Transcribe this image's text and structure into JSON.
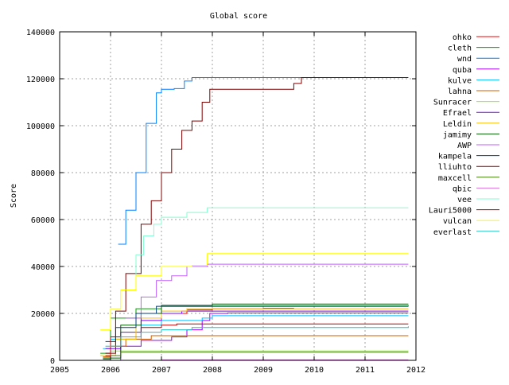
{
  "chart_data": {
    "type": "line",
    "title": "Global score",
    "xlabel": "",
    "ylabel": "Score",
    "xlim": [
      2005,
      2012
    ],
    "ylim": [
      0,
      140000
    ],
    "x_ticks": [
      "2005",
      "2006",
      "2007",
      "2008",
      "2009",
      "2010",
      "2011",
      "2012"
    ],
    "y_ticks": [
      "0",
      "20000",
      "40000",
      "60000",
      "80000",
      "100000",
      "120000",
      "140000"
    ],
    "grid": true,
    "legend_position": "right",
    "series": [
      {
        "name": "ohko",
        "color": "#ff0000",
        "points": [
          [
            2006.5,
            20000
          ],
          [
            2007.5,
            21500
          ],
          [
            2008.0,
            22000
          ],
          [
            2009.0,
            22200
          ],
          [
            2009.6,
            22300
          ]
        ]
      },
      {
        "name": "cleth",
        "color": "#00a000",
        "points": [
          [
            2005.8,
            3000
          ],
          [
            2006.0,
            18000
          ],
          [
            2006.5,
            22000
          ],
          [
            2007.0,
            23000
          ],
          [
            2008.0,
            23200
          ],
          [
            2011.85,
            23500
          ]
        ]
      },
      {
        "name": "wnd",
        "color": "#0080ff",
        "points": [
          [
            2006.15,
            49500
          ],
          [
            2006.3,
            64000
          ],
          [
            2006.5,
            80000
          ],
          [
            2006.7,
            101000
          ],
          [
            2006.9,
            114000
          ],
          [
            2007.0,
            115500
          ],
          [
            2007.25,
            115800
          ],
          [
            2007.45,
            119000
          ],
          [
            2007.6,
            120500
          ],
          [
            2008.0,
            120500
          ],
          [
            2009.75,
            120500
          ]
        ]
      },
      {
        "name": "quba",
        "color": "#a000ff",
        "points": [
          [
            2005.9,
            0
          ],
          [
            2006.2,
            6000
          ],
          [
            2006.6,
            8500
          ],
          [
            2007.2,
            10000
          ],
          [
            2007.5,
            13000
          ],
          [
            2007.8,
            17000
          ],
          [
            2007.95,
            20000
          ],
          [
            2008.3,
            20200
          ],
          [
            2011.85,
            20200
          ]
        ]
      },
      {
        "name": "kulve",
        "color": "#00c0ff",
        "points": [
          [
            2005.85,
            5000
          ],
          [
            2006.0,
            9000
          ],
          [
            2006.6,
            15000
          ],
          [
            2007.0,
            17000
          ],
          [
            2007.8,
            18000
          ],
          [
            2008.0,
            19000
          ],
          [
            2011.85,
            19000
          ]
        ]
      },
      {
        "name": "lahna",
        "color": "#d06000",
        "points": [
          [
            2005.85,
            1500
          ],
          [
            2006.0,
            6000
          ],
          [
            2006.3,
            9000
          ],
          [
            2006.8,
            10500
          ],
          [
            2011.85,
            10500
          ]
        ]
      },
      {
        "name": "Sunracer",
        "color": "#80ff00",
        "points": [
          [
            2005.9,
            2000
          ],
          [
            2006.0,
            4000
          ],
          [
            2006.1,
            4000
          ],
          [
            2011.85,
            4000
          ]
        ]
      },
      {
        "name": "Efrael",
        "color": "#8000ff",
        "points": [
          [
            2005.9,
            5000
          ],
          [
            2006.2,
            12000
          ],
          [
            2006.6,
            17000
          ],
          [
            2007.0,
            20000
          ],
          [
            2007.4,
            21000
          ],
          [
            2011.85,
            21000
          ]
        ]
      },
      {
        "name": "Leldin",
        "color": "#ffc000",
        "points": [
          [
            2005.8,
            2000
          ],
          [
            2006.1,
            9000
          ],
          [
            2006.5,
            18000
          ],
          [
            2007.0,
            21000
          ],
          [
            2007.5,
            22000
          ],
          [
            2011.85,
            22000
          ]
        ]
      },
      {
        "name": "jamimy",
        "color": "#006000",
        "points": [
          [
            2005.85,
            1000
          ],
          [
            2006.2,
            15000
          ],
          [
            2006.6,
            20000
          ],
          [
            2007.0,
            23500
          ],
          [
            2008.0,
            24000
          ],
          [
            2011.85,
            24000
          ]
        ]
      },
      {
        "name": "AWP",
        "color": "#c060ff",
        "points": [
          [
            2006.3,
            18000
          ],
          [
            2006.6,
            27000
          ],
          [
            2006.9,
            34000
          ],
          [
            2007.2,
            36000
          ],
          [
            2007.5,
            40000
          ],
          [
            2007.9,
            41000
          ],
          [
            2011.85,
            41000
          ]
        ]
      },
      {
        "name": "kampela",
        "color": "#004080",
        "points": [
          [
            2005.9,
            8000
          ],
          [
            2006.1,
            14000
          ],
          [
            2006.5,
            20000
          ],
          [
            2006.9,
            23000
          ],
          [
            2007.5,
            23000
          ],
          [
            2011.85,
            23000
          ]
        ]
      },
      {
        "name": "lliuhto",
        "color": "#800000",
        "points": [
          [
            2005.9,
            3000
          ],
          [
            2006.1,
            21000
          ],
          [
            2006.3,
            37000
          ],
          [
            2006.6,
            58000
          ],
          [
            2006.8,
            68000
          ],
          [
            2007.0,
            80000
          ],
          [
            2007.2,
            90000
          ],
          [
            2007.4,
            98000
          ],
          [
            2007.6,
            102000
          ],
          [
            2007.8,
            110000
          ],
          [
            2007.95,
            115500
          ],
          [
            2009.6,
            118000
          ],
          [
            2009.75,
            120500
          ],
          [
            2011.85,
            120500
          ]
        ]
      },
      {
        "name": "maxcell",
        "color": "#408000",
        "points": [
          [
            2005.85,
            500
          ],
          [
            2006.0,
            2000
          ],
          [
            2006.2,
            3500
          ],
          [
            2011.85,
            3500
          ]
        ]
      },
      {
        "name": "qbic",
        "color": "#e070e0",
        "points": [
          [
            2007.0,
            200
          ],
          [
            2011.85,
            200
          ]
        ]
      },
      {
        "name": "vee",
        "color": "#80ffd0",
        "points": [
          [
            2006.3,
            30000
          ],
          [
            2006.5,
            45000
          ],
          [
            2006.65,
            53000
          ],
          [
            2006.85,
            58000
          ],
          [
            2007.0,
            61000
          ],
          [
            2007.5,
            63000
          ],
          [
            2007.9,
            65000
          ],
          [
            2011.85,
            65000
          ]
        ]
      },
      {
        "name": "Lauri5000",
        "color": "#c00000",
        "points": [
          [
            2005.9,
            2000
          ],
          [
            2006.0,
            10000
          ],
          [
            2006.6,
            14000
          ],
          [
            2007.0,
            15000
          ],
          [
            2007.3,
            15500
          ],
          [
            2011.85,
            15500
          ]
        ]
      },
      {
        "name": "vulcan",
        "color": "#ffff00",
        "points": [
          [
            2005.8,
            13000
          ],
          [
            2006.0,
            22000
          ],
          [
            2006.2,
            30000
          ],
          [
            2006.5,
            36000
          ],
          [
            2007.0,
            40000
          ],
          [
            2007.6,
            40500
          ],
          [
            2007.9,
            45500
          ],
          [
            2011.85,
            45500
          ]
        ]
      },
      {
        "name": "everlast",
        "color": "#20c0c0",
        "points": [
          [
            2005.9,
            6000
          ],
          [
            2006.2,
            10000
          ],
          [
            2006.6,
            12000
          ],
          [
            2007.0,
            13000
          ],
          [
            2007.6,
            14000
          ],
          [
            2011.85,
            14500
          ]
        ]
      }
    ]
  }
}
